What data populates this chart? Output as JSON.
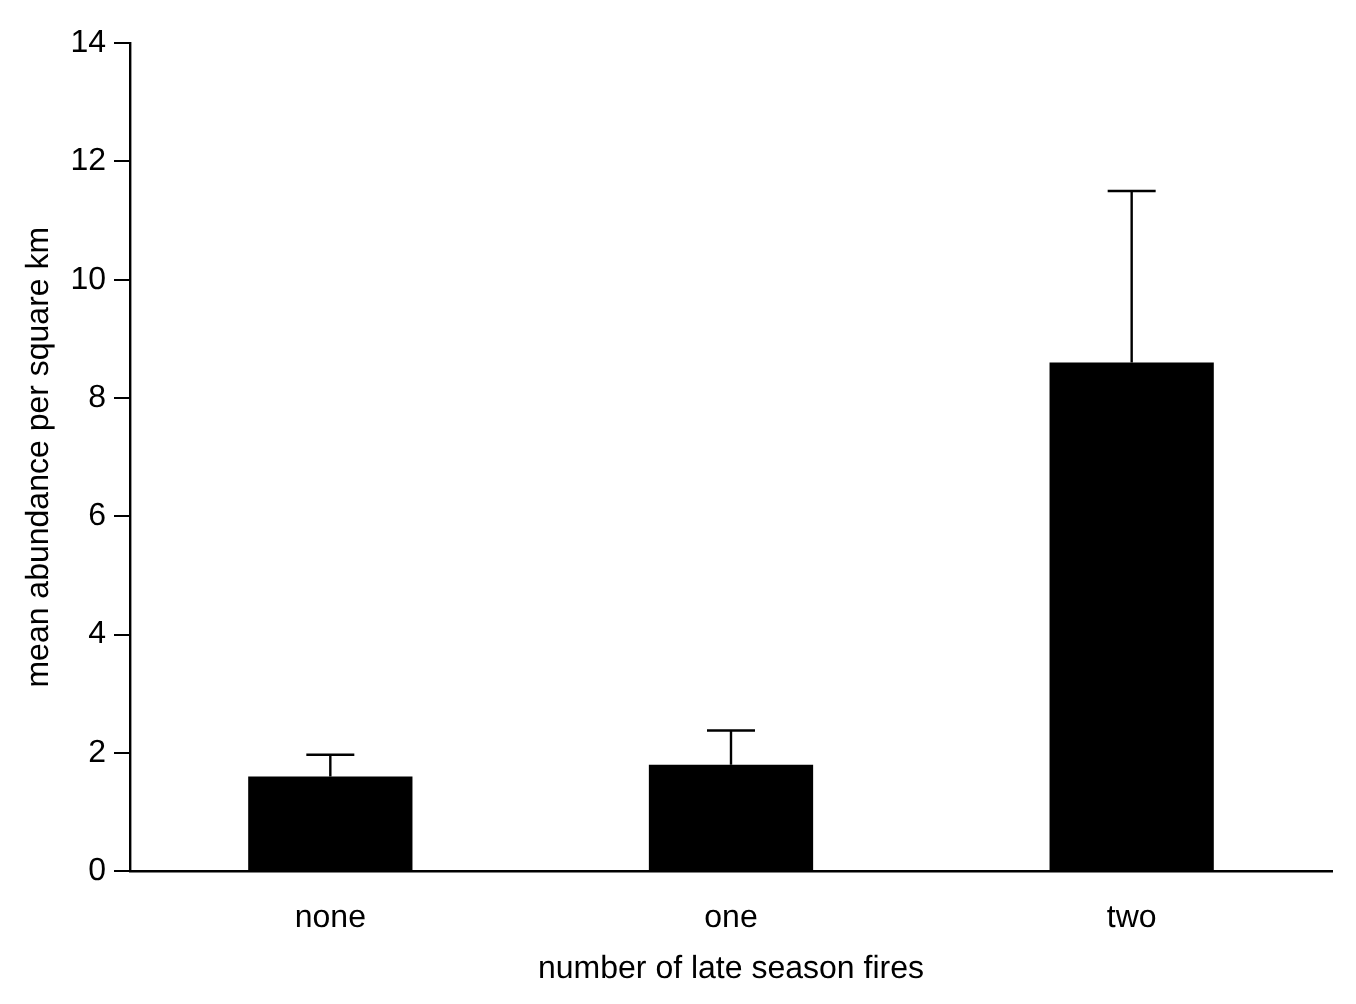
{
  "chart_data": {
    "type": "bar",
    "xlabel": "number of late season fires",
    "ylabel": "mean abundance per square km",
    "categories": [
      "none",
      "one",
      "two"
    ],
    "values": [
      1.6,
      1.8,
      8.6
    ],
    "errors": [
      [
        1.6,
        1.97
      ],
      [
        1.8,
        2.38
      ],
      [
        8.6,
        11.5
      ]
    ],
    "color": "#000000",
    "ylim": [
      0,
      14
    ],
    "yticks": [
      0,
      2,
      4,
      6,
      8,
      10,
      12,
      14
    ],
    "grid": false,
    "legend": false
  }
}
